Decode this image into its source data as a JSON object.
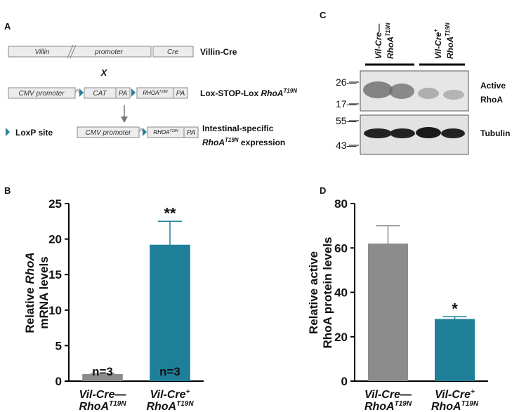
{
  "panels": {
    "a": "A",
    "b": "B",
    "c": "C",
    "d": "D"
  },
  "diagram": {
    "row1": {
      "villin": "Villin",
      "promoter": "promoter",
      "cre": "Cre",
      "label": "Villin-Cre"
    },
    "cross": "X",
    "row2": {
      "cmv": "CMV promoter",
      "cat": "CAT",
      "pa1": "PA",
      "gene": "RHOA",
      "allele": "T19N",
      "pa2": "PA",
      "label": "Lox-STOP-Lox ",
      "label_gene": "RhoA",
      "label_allele": "T19N"
    },
    "row3": {
      "loxp": "LoxP site",
      "cmv": "CMV promoter",
      "gene": "RHOA",
      "allele": "T19N",
      "pa": "PA",
      "label1": "Intestinal-specific",
      "label_gene": "RhoA",
      "label_allele": "T19N",
      "label_rest": " expression"
    }
  },
  "blot": {
    "lanes": [
      {
        "name": "Vil-Cre—",
        "gene": "RhoA",
        "allele": "T19N"
      },
      {
        "name": "Vil-Cre",
        "sup": "+",
        "gene": "RhoA",
        "allele": "T19N"
      }
    ],
    "markers": [
      "26—",
      "17—",
      "55—",
      "43—"
    ],
    "proteins": [
      "Active",
      "RhoA",
      "Tubulin"
    ]
  },
  "chart_data": [
    {
      "type": "bar",
      "ylabel": [
        "Relative",
        "RhoA",
        "mRNA levels"
      ],
      "categories": [
        {
          "name": "Vil-Cre—",
          "gene": "RhoA",
          "allele": "T19N"
        },
        {
          "name": "Vil-Cre",
          "sup": "+",
          "gene": "RhoA",
          "allele": "T19N"
        }
      ],
      "values": [
        1,
        19.2
      ],
      "errors": [
        0.1,
        3.3
      ],
      "colors": [
        "#8c8c8c",
        "#1f7f99"
      ],
      "n_labels": [
        "n=3",
        "n=3"
      ],
      "significance": [
        null,
        "**"
      ],
      "ylim": [
        0,
        25
      ],
      "yticks": [
        0,
        5,
        10,
        15,
        20,
        25
      ]
    },
    {
      "type": "bar",
      "ylabel": [
        "Relative active",
        "RhoA protein levels"
      ],
      "categories": [
        {
          "name": "Vil-Cre—",
          "gene": "RhoA",
          "allele": "T19N"
        },
        {
          "name": "Vil-Cre",
          "sup": "+",
          "gene": "RhoA",
          "allele": "T19N"
        }
      ],
      "values": [
        62,
        28
      ],
      "errors": [
        8,
        1
      ],
      "colors": [
        "#8c8c8c",
        "#1f7f99"
      ],
      "significance": [
        null,
        "*"
      ],
      "ylim": [
        0,
        80
      ],
      "yticks": [
        0,
        20,
        40,
        60,
        80
      ]
    }
  ]
}
